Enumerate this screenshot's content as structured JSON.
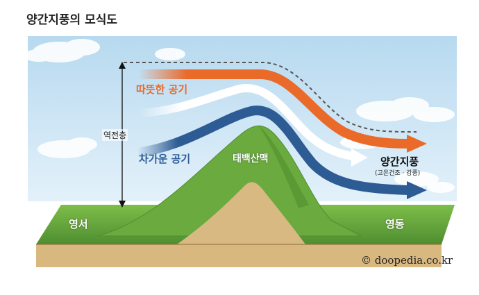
{
  "title": "양간지풍의 모식도",
  "labels": {
    "warm_air": "따뜻한 공기",
    "cold_air": "차가운 공기",
    "inversion_layer": "역전층",
    "mountain": "태백산맥",
    "west": "영서",
    "east": "영동",
    "foehn_wind": "양간지풍",
    "foehn_sub": "(고온건조 · 강풍)"
  },
  "credit": "© doopedia.co.kr",
  "colors": {
    "sky": "#cfe6f4",
    "warm_arrow": "#ea6a2a",
    "cold_arrow": "#2d5b93",
    "white_arrow": "#ffffff",
    "grass": "#6aaa3e",
    "soil": "#d8b982",
    "boundary": "#555555"
  }
}
